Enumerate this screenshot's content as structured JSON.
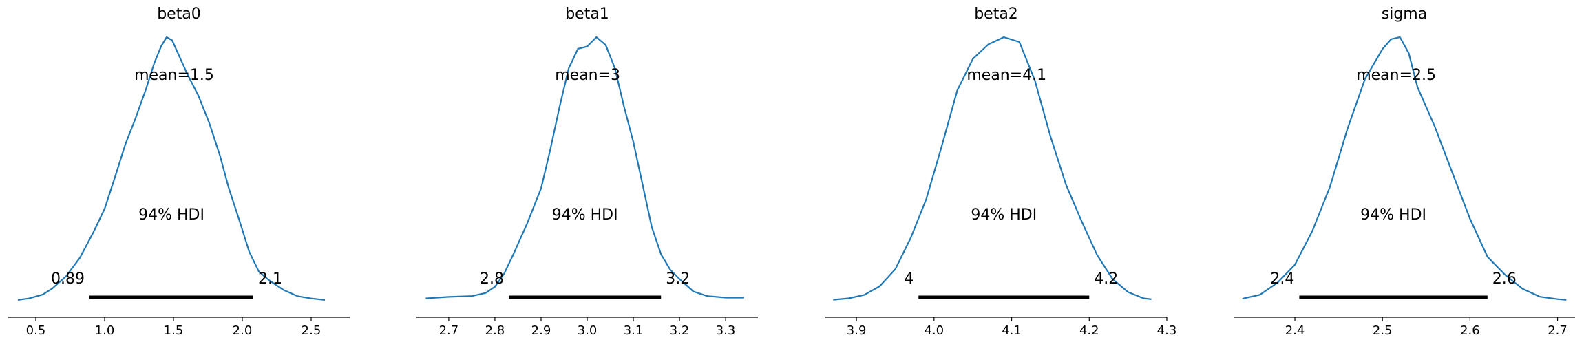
{
  "chart_data": [
    {
      "type": "area",
      "title": "beta0",
      "xlabel": "",
      "ylabel": "",
      "mean_label": "mean=1.5",
      "hdi_label": "94% HDI",
      "hdi_low_label": "0.89",
      "hdi_high_label": "2.1",
      "hdi": [
        0.89,
        2.08
      ],
      "xlim": [
        0.3,
        2.78
      ],
      "ticks": [
        0.5,
        1.0,
        1.5,
        2.0,
        2.5
      ],
      "tick_labels": [
        "0.5",
        "1.0",
        "1.5",
        "2.0",
        "2.5"
      ],
      "density": {
        "x": [
          0.37,
          0.45,
          0.55,
          0.62,
          0.72,
          0.82,
          0.92,
          1.0,
          1.08,
          1.15,
          1.22,
          1.3,
          1.36,
          1.41,
          1.45,
          1.49,
          1.53,
          1.6,
          1.68,
          1.76,
          1.84,
          1.9,
          1.98,
          2.05,
          2.12,
          2.2,
          2.3,
          2.4,
          2.5,
          2.6
        ],
        "y": [
          0.005,
          0.015,
          0.04,
          0.08,
          0.16,
          0.28,
          0.45,
          0.6,
          0.82,
          1.02,
          1.18,
          1.38,
          1.55,
          1.66,
          1.72,
          1.7,
          1.62,
          1.48,
          1.34,
          1.16,
          0.94,
          0.74,
          0.52,
          0.32,
          0.19,
          0.13,
          0.07,
          0.03,
          0.015,
          0.005
        ]
      }
    },
    {
      "type": "area",
      "title": "beta1",
      "xlabel": "",
      "ylabel": "",
      "mean_label": "mean=3",
      "hdi_label": "94% HDI",
      "hdi_low_label": "2.8",
      "hdi_high_label": "3.2",
      "hdi": [
        2.83,
        3.16
      ],
      "xlim": [
        2.63,
        3.37
      ],
      "ticks": [
        2.7,
        2.8,
        2.9,
        3.0,
        3.1,
        3.2,
        3.3
      ],
      "tick_labels": [
        "2.7",
        "2.8",
        "2.9",
        "3.0",
        "3.1",
        "3.2",
        "3.3"
      ],
      "density": {
        "x": [
          2.65,
          2.7,
          2.75,
          2.78,
          2.8,
          2.82,
          2.84,
          2.87,
          2.9,
          2.92,
          2.94,
          2.96,
          2.98,
          3.0,
          3.02,
          3.04,
          3.06,
          3.08,
          3.1,
          3.12,
          3.14,
          3.16,
          3.18,
          3.2,
          3.23,
          3.26,
          3.3,
          3.34
        ],
        "y": [
          0.03,
          0.05,
          0.06,
          0.1,
          0.18,
          0.35,
          0.6,
          1.0,
          1.45,
          1.95,
          2.5,
          3.0,
          3.25,
          3.28,
          3.4,
          3.3,
          3.0,
          2.5,
          2.05,
          1.5,
          0.95,
          0.6,
          0.4,
          0.28,
          0.12,
          0.06,
          0.04,
          0.04
        ]
      }
    },
    {
      "type": "area",
      "title": "beta2",
      "xlabel": "",
      "ylabel": "",
      "mean_label": "mean=4.1",
      "hdi_label": "94% HDI",
      "hdi_low_label": "4",
      "hdi_high_label": "4.2",
      "hdi": [
        3.98,
        4.2
      ],
      "xlim": [
        3.86,
        4.3
      ],
      "ticks": [
        3.9,
        4.0,
        4.1,
        4.2,
        4.3
      ],
      "tick_labels": [
        "3.9",
        "4.0",
        "4.1",
        "4.2",
        "4.3"
      ],
      "density": {
        "x": [
          3.87,
          3.89,
          3.91,
          3.93,
          3.95,
          3.97,
          3.99,
          4.01,
          4.03,
          4.05,
          4.07,
          4.09,
          4.11,
          4.13,
          4.15,
          4.17,
          4.19,
          4.21,
          4.23,
          4.25,
          4.27,
          4.28
        ],
        "y": [
          0.02,
          0.05,
          0.12,
          0.3,
          0.65,
          1.3,
          2.1,
          3.2,
          4.35,
          5.0,
          5.3,
          5.45,
          5.35,
          4.55,
          3.4,
          2.4,
          1.65,
          0.95,
          0.45,
          0.18,
          0.05,
          0.03
        ]
      }
    },
    {
      "type": "area",
      "title": "sigma",
      "xlabel": "",
      "ylabel": "",
      "mean_label": "mean=2.5",
      "hdi_label": "94% HDI",
      "hdi_low_label": "2.4",
      "hdi_high_label": "2.6",
      "hdi": [
        2.405,
        2.62
      ],
      "xlim": [
        2.33,
        2.72
      ],
      "ticks": [
        2.4,
        2.5,
        2.6,
        2.7
      ],
      "tick_labels": [
        "2.4",
        "2.5",
        "2.6",
        "2.7"
      ],
      "density": {
        "x": [
          2.34,
          2.36,
          2.38,
          2.4,
          2.42,
          2.44,
          2.46,
          2.48,
          2.5,
          2.51,
          2.52,
          2.53,
          2.54,
          2.56,
          2.58,
          2.6,
          2.62,
          2.64,
          2.66,
          2.68,
          2.7,
          2.71
        ],
        "y": [
          0.05,
          0.15,
          0.45,
          0.9,
          1.75,
          2.85,
          4.3,
          5.55,
          6.3,
          6.55,
          6.6,
          6.2,
          5.35,
          4.35,
          3.2,
          2.05,
          1.1,
          0.65,
          0.3,
          0.1,
          0.04,
          0.02
        ]
      }
    }
  ],
  "style": {
    "line_color": "#1f77b4",
    "hdi_color": "#000000",
    "axis_color": "#000000"
  }
}
